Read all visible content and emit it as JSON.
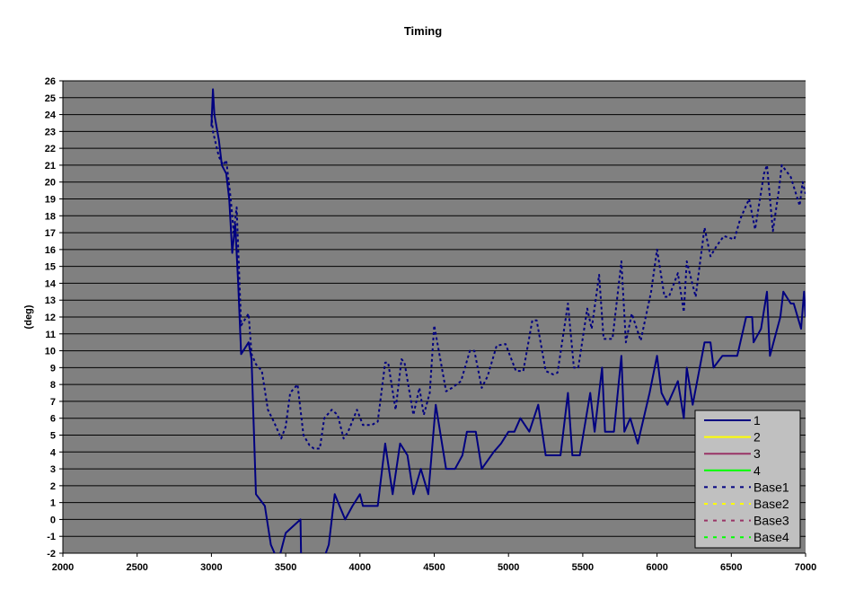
{
  "chart_data": {
    "type": "line",
    "title": "Timing",
    "xlabel": "",
    "ylabel": "(deg)",
    "xlim": [
      2000,
      7000
    ],
    "ylim": [
      -2,
      26
    ],
    "x_ticks": [
      2000,
      2500,
      3000,
      3500,
      4000,
      4500,
      5000,
      5500,
      6000,
      6500,
      7000
    ],
    "y_ticks": [
      -2,
      -1,
      0,
      1,
      2,
      3,
      4,
      5,
      6,
      7,
      8,
      9,
      10,
      11,
      12,
      13,
      14,
      15,
      16,
      17,
      18,
      19,
      20,
      21,
      22,
      23,
      24,
      25,
      26
    ],
    "grid": "horizontal",
    "plot_background": "#808080",
    "legend_position": "bottom-right",
    "legend": [
      {
        "name": "1",
        "color": "#000080",
        "style": "solid"
      },
      {
        "name": "2",
        "color": "#ffff00",
        "style": "solid"
      },
      {
        "name": "3",
        "color": "#993366",
        "style": "solid"
      },
      {
        "name": "4",
        "color": "#00ff00",
        "style": "solid"
      },
      {
        "name": "Base1",
        "color": "#000080",
        "style": "dashed"
      },
      {
        "name": "Base2",
        "color": "#ffff00",
        "style": "dashed"
      },
      {
        "name": "Base3",
        "color": "#993366",
        "style": "dashed"
      },
      {
        "name": "Base4",
        "color": "#00ff00",
        "style": "dashed"
      }
    ],
    "series": [
      {
        "name": "1",
        "color": "#000080",
        "style": "solid",
        "x": [
          3000,
          3010,
          3020,
          3050,
          3070,
          3100,
          3120,
          3140,
          3160,
          3180,
          3200,
          3250,
          3270,
          3300,
          3360,
          3400,
          3450,
          3500,
          3600,
          3605,
          3750,
          3790,
          3830,
          3900,
          3950,
          4000,
          4020,
          4120,
          4170,
          4220,
          4270,
          4320,
          4360,
          4410,
          4460,
          4510,
          4580,
          4640,
          4690,
          4720,
          4780,
          4820,
          4900,
          4950,
          5000,
          5040,
          5080,
          5140,
          5200,
          5250,
          5350,
          5400,
          5430,
          5480,
          5550,
          5580,
          5630,
          5650,
          5710,
          5760,
          5780,
          5820,
          5870,
          5950,
          6000,
          6030,
          6070,
          6140,
          6180,
          6200,
          6240,
          6320,
          6360,
          6380,
          6440,
          6540,
          6600,
          6640,
          6650,
          6700,
          6740,
          6760,
          6830,
          6850,
          6900,
          6920,
          6970,
          6990,
          7000
        ],
        "y": [
          23.3,
          25.5,
          24,
          22.5,
          21,
          20.5,
          19,
          15.8,
          17.5,
          14,
          9.8,
          10.5,
          9.5,
          1.5,
          0.8,
          -1.5,
          -2.5,
          -0.8,
          0,
          -3,
          -2.5,
          -1.5,
          1.5,
          0,
          0.8,
          1.5,
          0.8,
          0.8,
          4.5,
          1.5,
          4.5,
          3.8,
          1.5,
          3,
          1.5,
          6.8,
          3,
          3,
          3.8,
          5.2,
          5.2,
          3,
          4,
          4.5,
          5.2,
          5.2,
          6,
          5.2,
          6.8,
          3.8,
          3.8,
          7.5,
          3.8,
          3.8,
          7.5,
          5.2,
          9,
          5.2,
          5.2,
          9.7,
          5.2,
          6,
          4.5,
          7.5,
          9.7,
          7.5,
          6.8,
          8.2,
          6,
          9,
          6.8,
          10.5,
          10.5,
          9,
          9.7,
          9.7,
          12,
          12,
          10.5,
          11.3,
          13.5,
          9.7,
          12,
          13.5,
          12.8,
          12.8,
          11.3,
          13.5,
          12
        ]
      },
      {
        "name": "Base1",
        "color": "#000080",
        "style": "dashed",
        "x": [
          3000,
          3010,
          3050,
          3080,
          3100,
          3130,
          3150,
          3170,
          3200,
          3250,
          3270,
          3300,
          3340,
          3380,
          3420,
          3470,
          3500,
          3530,
          3580,
          3620,
          3660,
          3690,
          3730,
          3760,
          3810,
          3850,
          3890,
          3920,
          3980,
          4020,
          4080,
          4120,
          4170,
          4190,
          4240,
          4280,
          4300,
          4360,
          4400,
          4430,
          4470,
          4500,
          4580,
          4620,
          4680,
          4740,
          4770,
          4820,
          4860,
          4920,
          4980,
          5050,
          5100,
          5160,
          5190,
          5250,
          5300,
          5330,
          5400,
          5440,
          5470,
          5530,
          5560,
          5610,
          5640,
          5700,
          5760,
          5790,
          5830,
          5890,
          5960,
          6000,
          6050,
          6080,
          6140,
          6180,
          6200,
          6260,
          6320,
          6360,
          6400,
          6450,
          6520,
          6560,
          6620,
          6660,
          6720,
          6740,
          6780,
          6820,
          6840,
          6900,
          6960,
          6980,
          7000
        ],
        "y": [
          24,
          23,
          21.5,
          21,
          21.3,
          19,
          17,
          18.5,
          11.5,
          12.2,
          9.8,
          9.2,
          8.8,
          6.5,
          5.8,
          4.8,
          5.5,
          7.5,
          8,
          5,
          4.4,
          4.2,
          4.2,
          6,
          6.5,
          6.2,
          4.8,
          5.2,
          6.5,
          5.6,
          5.6,
          5.8,
          9.3,
          9.3,
          6.5,
          9.5,
          9.3,
          6.2,
          7.8,
          6.2,
          7.5,
          11.5,
          7.6,
          7.8,
          8.2,
          10,
          10,
          7.8,
          8.5,
          10.3,
          10.4,
          8.8,
          8.8,
          11.8,
          11.8,
          8.8,
          8.6,
          8.7,
          12.8,
          9,
          9,
          12.5,
          11.3,
          14.5,
          10.7,
          10.7,
          15.3,
          10.5,
          12.2,
          10.6,
          13.5,
          16,
          13.2,
          13.2,
          14.6,
          12.3,
          15.3,
          13.2,
          17.3,
          15.6,
          16.2,
          16.8,
          16.6,
          17.8,
          19,
          17.2,
          20.5,
          21,
          17.1,
          19.5,
          21,
          20.3,
          18.6,
          20,
          19.3
        ]
      }
    ]
  }
}
